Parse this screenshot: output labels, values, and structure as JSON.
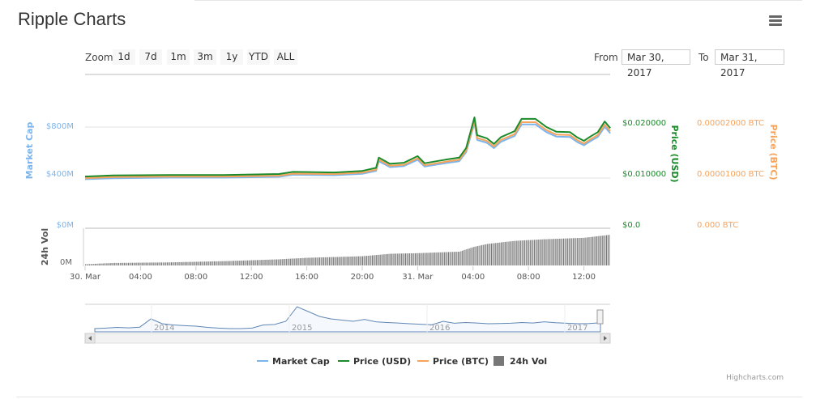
{
  "header": {
    "title": "Ripple Charts",
    "menu_icon": "hamburger-menu-icon"
  },
  "range_selector": {
    "zoom_label": "Zoom",
    "buttons": [
      "1d",
      "7d",
      "1m",
      "3m",
      "1y",
      "YTD",
      "ALL"
    ],
    "from_label": "From",
    "from_value": "Mar 30, 2017",
    "to_label": "To",
    "to_value": "Mar 31, 2017"
  },
  "colors": {
    "market_cap": "#7cb5ec",
    "price_usd": "#1b8a2a",
    "price_btc": "#f7a35c",
    "volume": "#777777",
    "grid": "#e6e6e6"
  },
  "chart_data": {
    "type": "line",
    "x_unit": "hours since 30 Mar 2017 00:00",
    "x_tick_labels": [
      "30. Mar",
      "04:00",
      "08:00",
      "12:00",
      "16:00",
      "20:00",
      "31. Mar",
      "04:00",
      "08:00",
      "12:00"
    ],
    "axes": {
      "market_cap": {
        "title": "Market Cap",
        "ticks": [
          "$800M",
          "$400M"
        ],
        "tick_values": [
          800,
          400
        ]
      },
      "price_usd": {
        "title": "Price (USD)",
        "ticks": [
          "$0.020000",
          "$0.010000"
        ],
        "tick_values": [
          0.02,
          0.01
        ]
      },
      "price_btc": {
        "title": "Price (BTC)",
        "ticks": [
          "0.00002000 BTC",
          "0.00001000 BTC"
        ],
        "tick_values": [
          2e-05,
          1e-05
        ]
      },
      "volume": {
        "title": "24h Vol",
        "ticks_left": [
          "$0M",
          "0M"
        ],
        "tick_right_usd": "$0.0",
        "tick_right_btc": "0.000 BTC"
      }
    },
    "x": [
      0,
      2,
      6,
      10,
      14,
      15,
      18,
      20,
      21,
      21.2,
      22,
      23,
      24,
      24.5,
      26,
      27,
      27.5,
      28.1,
      28.3,
      29,
      29.5,
      30,
      31,
      31.5,
      32.5,
      33.3,
      34,
      35,
      35.5,
      36,
      36.5,
      37,
      37.5,
      37.9
    ],
    "series": [
      {
        "name": "Market Cap",
        "values": [
          391,
          399,
          403,
          403,
          410,
          426,
          422,
          433,
          456,
          532,
          486,
          494,
          543,
          490,
          517,
          532,
          604,
          832,
          699,
          676,
          635,
          684,
          730,
          821,
          821,
          760,
          726,
          722,
          684,
          657,
          692,
          722,
          802,
          752
        ]
      },
      {
        "name": "Price (USD)",
        "values": [
          0.0103,
          0.0105,
          0.0106,
          0.0106,
          0.0108,
          0.0112,
          0.0111,
          0.0114,
          0.012,
          0.014,
          0.0128,
          0.013,
          0.0143,
          0.0129,
          0.0136,
          0.014,
          0.0159,
          0.0219,
          0.0184,
          0.0178,
          0.0167,
          0.018,
          0.0192,
          0.0216,
          0.0216,
          0.02,
          0.0191,
          0.019,
          0.018,
          0.0173,
          0.0182,
          0.019,
          0.0211,
          0.0198
        ]
      },
      {
        "name": "Price (BTC)",
        "values": [
          9.99e-06,
          1.019e-05,
          1.028e-05,
          1.028e-05,
          1.048e-05,
          1.086e-05,
          1.077e-05,
          1.106e-05,
          1.164e-05,
          1.358e-05,
          1.242e-05,
          1.261e-05,
          1.387e-05,
          1.251e-05,
          1.319e-05,
          1.358e-05,
          1.542e-05,
          2.124e-05,
          1.785e-05,
          1.727e-05,
          1.62e-05,
          1.746e-05,
          1.862e-05,
          2.095e-05,
          2.095e-05,
          1.94e-05,
          1.853e-05,
          1.843e-05,
          1.746e-05,
          1.678e-05,
          1.765e-05,
          1.843e-05,
          2.047e-05,
          1.921e-05
        ]
      }
    ],
    "volume_relative": [
      [
        0,
        0.04
      ],
      [
        2,
        0.08
      ],
      [
        6,
        0.1
      ],
      [
        10,
        0.14
      ],
      [
        14,
        0.2
      ],
      [
        16,
        0.25
      ],
      [
        20,
        0.3
      ],
      [
        22,
        0.38
      ],
      [
        24,
        0.4
      ],
      [
        27,
        0.45
      ],
      [
        28,
        0.6
      ],
      [
        29,
        0.7
      ],
      [
        31,
        0.8
      ],
      [
        33,
        0.85
      ],
      [
        36,
        0.9
      ],
      [
        37.9,
        1.0
      ]
    ],
    "navigator": {
      "year_labels": [
        "2014",
        "2015",
        "2016",
        "2017"
      ],
      "relative_values": [
        0.1,
        0.12,
        0.15,
        0.13,
        0.16,
        0.5,
        0.3,
        0.25,
        0.22,
        0.2,
        0.15,
        0.12,
        0.1,
        0.1,
        0.12,
        0.25,
        0.27,
        0.4,
        1.0,
        0.8,
        0.6,
        0.5,
        0.45,
        0.4,
        0.48,
        0.38,
        0.35,
        0.33,
        0.3,
        0.28,
        0.26,
        0.4,
        0.32,
        0.35,
        0.33,
        0.3,
        0.31,
        0.32,
        0.35,
        0.33,
        0.38,
        0.34,
        0.32,
        0.3,
        0.31,
        0.34
      ]
    },
    "legend": [
      "Market Cap",
      "Price (USD)",
      "Price (BTC)",
      "24h Vol"
    ],
    "legend_placement": "bottom",
    "grid": true
  },
  "credit": "Highcharts.com"
}
